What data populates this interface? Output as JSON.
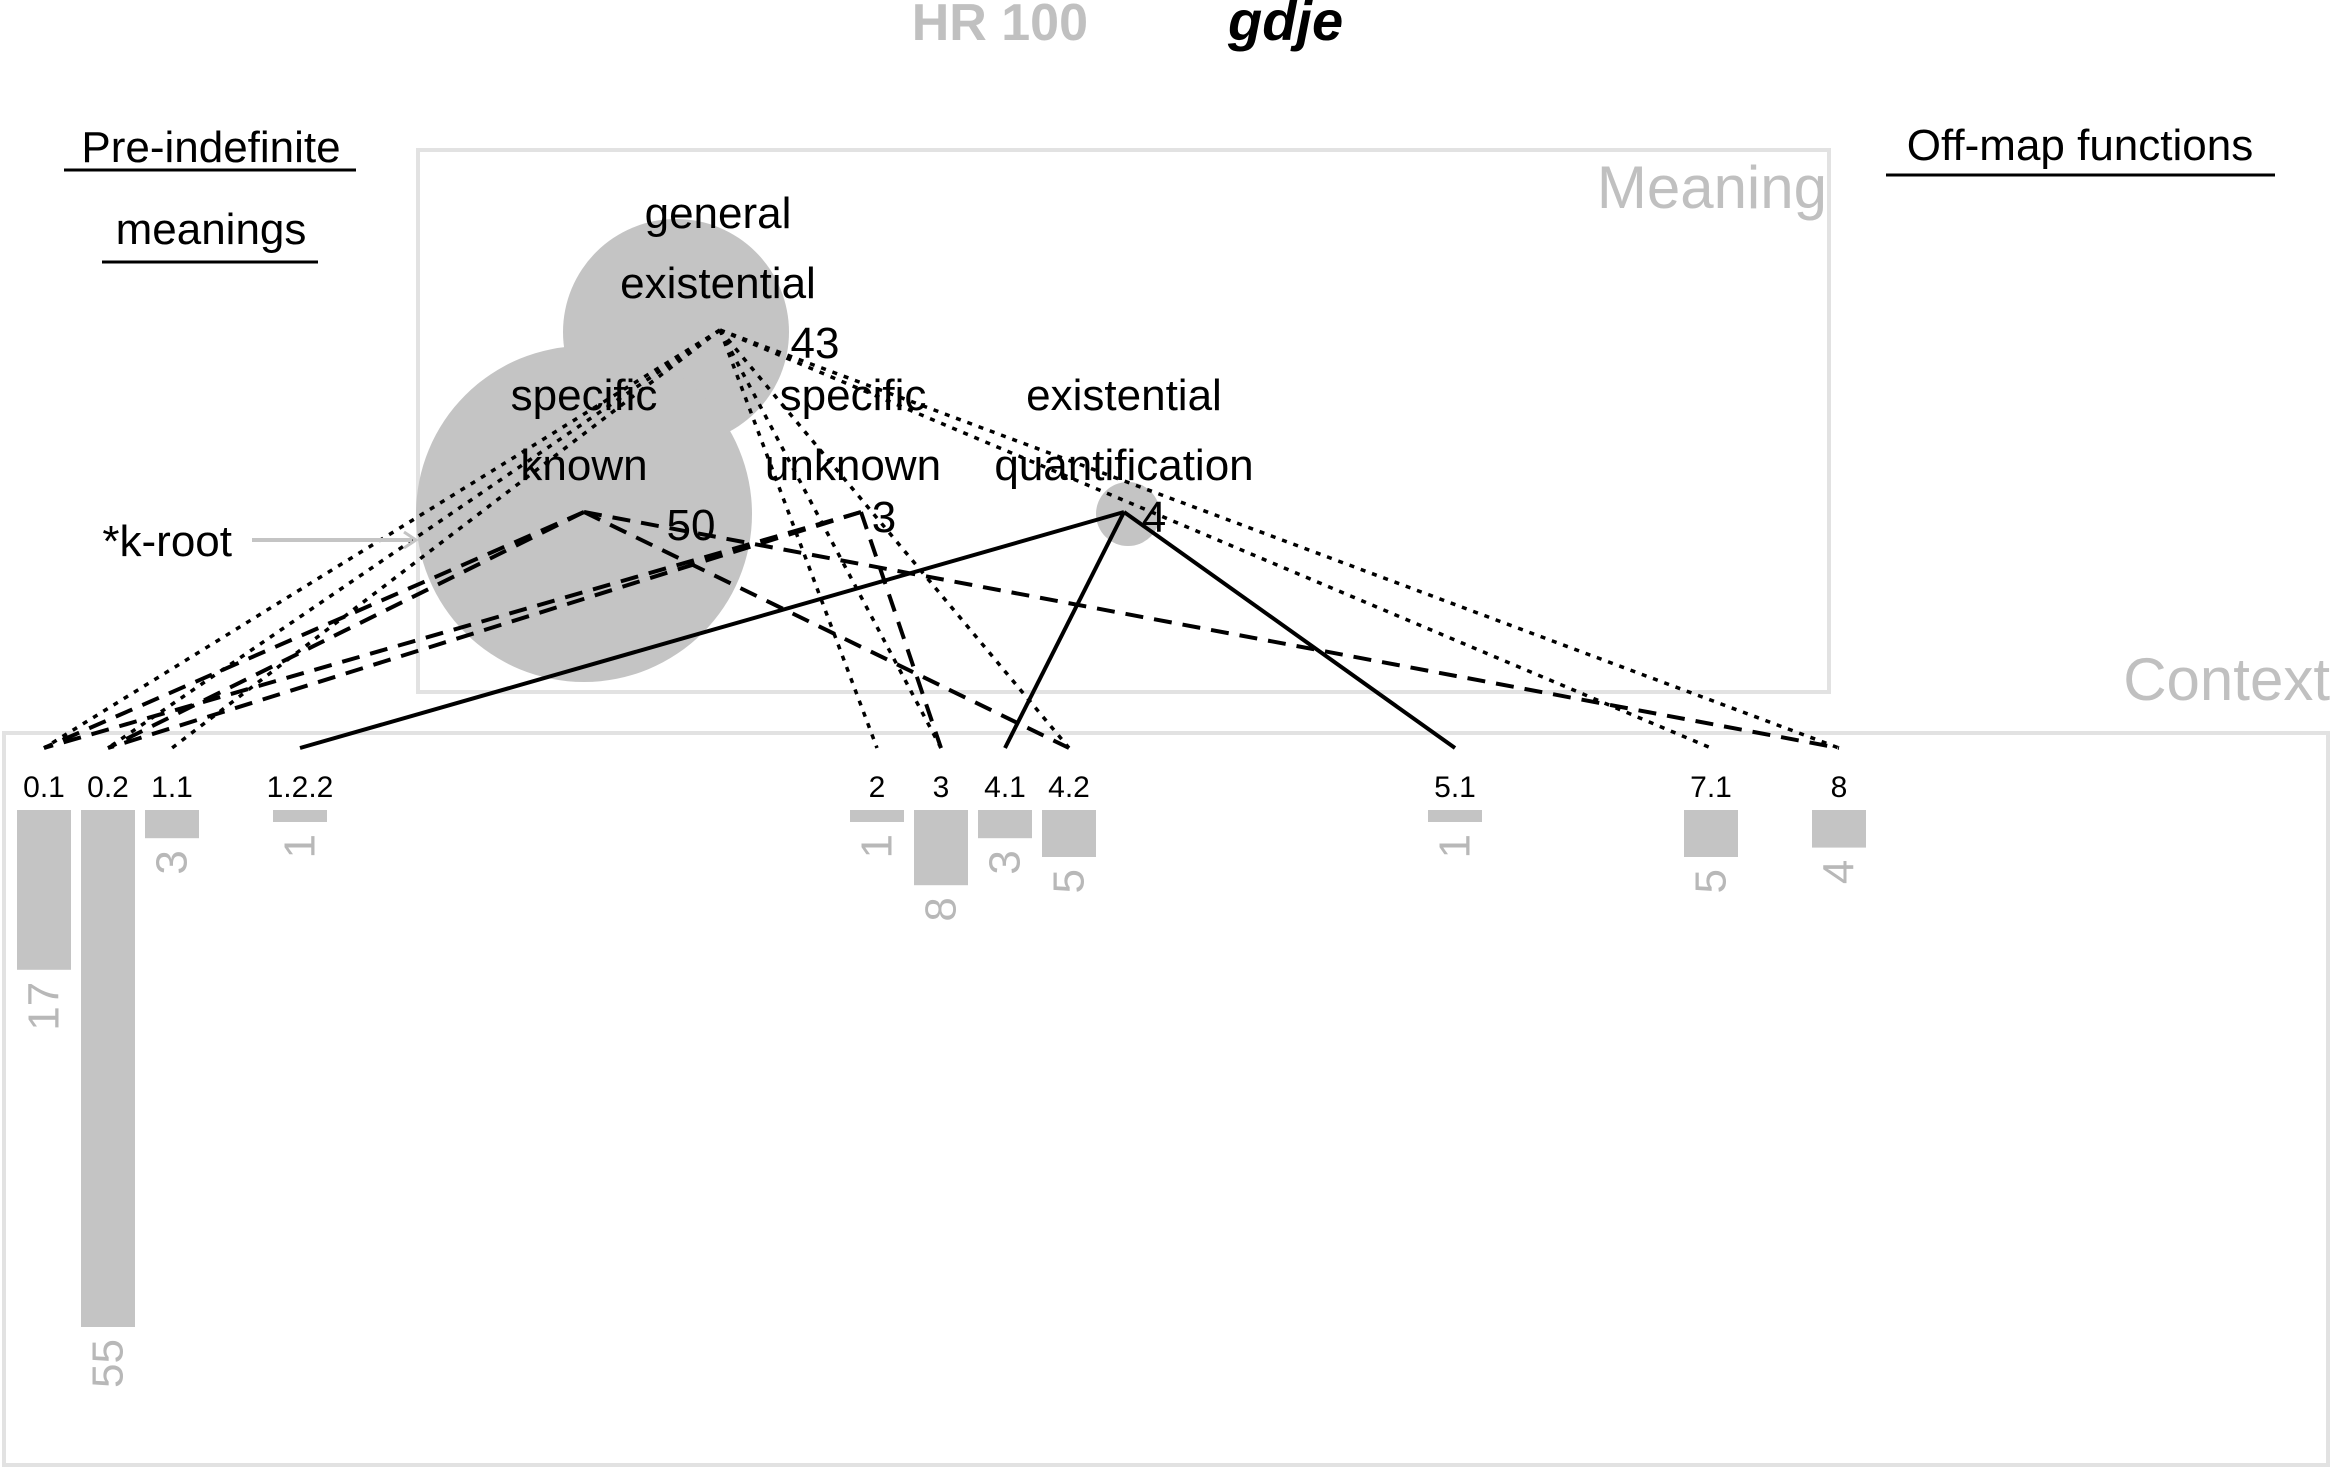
{
  "title": {
    "code": "HR 100",
    "word": "gdje"
  },
  "headings": {
    "pre_indefinite_line1": "Pre-indefinite",
    "pre_indefinite_line2": "meanings",
    "off_map": "Off-map functions",
    "meaning_box": "Meaning",
    "context_box": "Context"
  },
  "root_label": "*k-root",
  "colors": {
    "bubble": "#c4c4c4",
    "box_stroke": "#e2e2e2",
    "grey_text": "#c0c0c0",
    "bar": "#c4c4c4",
    "line": "#000000"
  },
  "meanings": [
    {
      "id": "general-existential",
      "line1": "general",
      "line2": "existential",
      "count": "43"
    },
    {
      "id": "specific-known",
      "line1": "specific",
      "line2": "known",
      "count": "50"
    },
    {
      "id": "specific-unknown",
      "line1": "specific",
      "line2": "unknown",
      "count": "3"
    },
    {
      "id": "existential-quantification",
      "line1": "existential",
      "line2": "quantification",
      "count": "4"
    }
  ],
  "contexts": [
    {
      "id": "0.1",
      "label": "0.1",
      "value": 17
    },
    {
      "id": "0.2",
      "label": "0.2",
      "value": 55
    },
    {
      "id": "1.1",
      "label": "1.1",
      "value": 3
    },
    {
      "id": "1.2.2",
      "label": "1.2.2",
      "value": 1
    },
    {
      "id": "2",
      "label": "2",
      "value": 1
    },
    {
      "id": "3",
      "label": "3",
      "value": 8
    },
    {
      "id": "4.1",
      "label": "4.1",
      "value": 3
    },
    {
      "id": "4.2",
      "label": "4.2",
      "value": 5
    },
    {
      "id": "5.1",
      "label": "5.1",
      "value": 1
    },
    {
      "id": "7.1",
      "label": "7.1",
      "value": 5
    },
    {
      "id": "8",
      "label": "8",
      "value": 4
    }
  ],
  "links": [
    {
      "from": "general-existential",
      "to": "0.1",
      "style": "dotted"
    },
    {
      "from": "general-existential",
      "to": "0.2",
      "style": "dotted"
    },
    {
      "from": "general-existential",
      "to": "1.1",
      "style": "dotted"
    },
    {
      "from": "general-existential",
      "to": "2",
      "style": "dotted"
    },
    {
      "from": "general-existential",
      "to": "3",
      "style": "dotted"
    },
    {
      "from": "general-existential",
      "to": "4.2",
      "style": "dotted"
    },
    {
      "from": "general-existential",
      "to": "7.1",
      "style": "dotted"
    },
    {
      "from": "general-existential",
      "to": "8",
      "style": "dotted"
    },
    {
      "from": "specific-known",
      "to": "0.1",
      "style": "dashed"
    },
    {
      "from": "specific-known",
      "to": "0.2",
      "style": "dashed"
    },
    {
      "from": "specific-known",
      "to": "4.2",
      "style": "dashed"
    },
    {
      "from": "specific-known",
      "to": "8",
      "style": "dashed"
    },
    {
      "from": "specific-unknown",
      "to": "0.1",
      "style": "dashed"
    },
    {
      "from": "specific-unknown",
      "to": "0.2",
      "style": "dashed"
    },
    {
      "from": "specific-unknown",
      "to": "3",
      "style": "dashed"
    },
    {
      "from": "existential-quantification",
      "to": "1.2.2",
      "style": "solid"
    },
    {
      "from": "existential-quantification",
      "to": "4.1",
      "style": "solid"
    },
    {
      "from": "existential-quantification",
      "to": "5.1",
      "style": "solid"
    }
  ]
}
